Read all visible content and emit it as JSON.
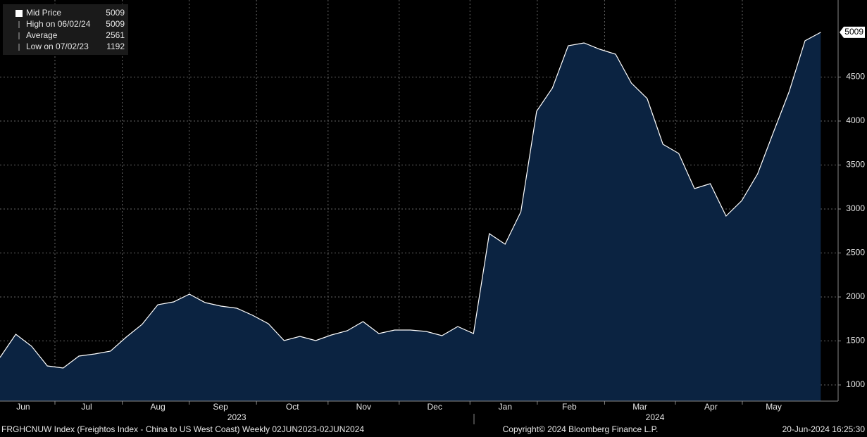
{
  "chart_data": {
    "type": "area",
    "series": [
      {
        "name": "Mid Price",
        "color": "#ffffff",
        "fill": "#0b2341",
        "values": [
          1312,
          1576,
          1440,
          1216,
          1192,
          1328,
          1352,
          1384,
          1544,
          1688,
          1912,
          1944,
          2032,
          1936,
          1896,
          1872,
          1792,
          1696,
          1504,
          1552,
          1504,
          1568,
          1616,
          1720,
          1584,
          1624,
          1624,
          1608,
          1560,
          1664,
          1584,
          2720,
          2600,
          2968,
          4112,
          4376,
          4856,
          4888,
          4816,
          4760,
          4432,
          4256,
          3736,
          3632,
          3232,
          3288,
          2920,
          3096,
          3400,
          3872,
          4336,
          4912,
          5009
        ]
      }
    ],
    "legend": [
      {
        "label": "Mid Price",
        "value": 5009
      },
      {
        "label": "High on 06/02/24",
        "value": 5009
      },
      {
        "label": "Average",
        "value": 2561
      },
      {
        "label": "Low on 07/02/23",
        "value": 1192
      }
    ],
    "xlim": [
      0,
      53.1
    ],
    "xticks": [
      {
        "value": 1.47,
        "label": "Jun"
      },
      {
        "value": 5.49,
        "label": "Jul"
      },
      {
        "value": 10.0,
        "label": "Aug"
      },
      {
        "value": 13.97,
        "label": "Sep"
      },
      {
        "value": 18.53,
        "label": "Oct"
      },
      {
        "value": 23.04,
        "label": "Nov"
      },
      {
        "value": 27.54,
        "label": "Dec"
      },
      {
        "value": 32.01,
        "label": "Jan"
      },
      {
        "value": 36.07,
        "label": "Feb"
      },
      {
        "value": 40.54,
        "label": "Mar"
      },
      {
        "value": 45.04,
        "label": "Apr"
      },
      {
        "value": 49.02,
        "label": "May"
      }
    ],
    "years": [
      {
        "value": 15.0,
        "label": "2023"
      },
      {
        "value": 41.5,
        "label": "2024"
      }
    ],
    "ylim": [
      816,
      5376
    ],
    "yticks": [
      1000,
      1500,
      2000,
      2500,
      3000,
      3500,
      4000,
      4500
    ],
    "last_value_label": "5009",
    "grid": true,
    "footer_left": "FRGHCNUW Index (Freightos Index - China to US West Coast)  Weekly 02JUN2023-02JUN2024",
    "footer_center": "Copyright© 2024 Bloomberg Finance L.P.",
    "footer_right": "20-Jun-2024 16:25:30"
  }
}
